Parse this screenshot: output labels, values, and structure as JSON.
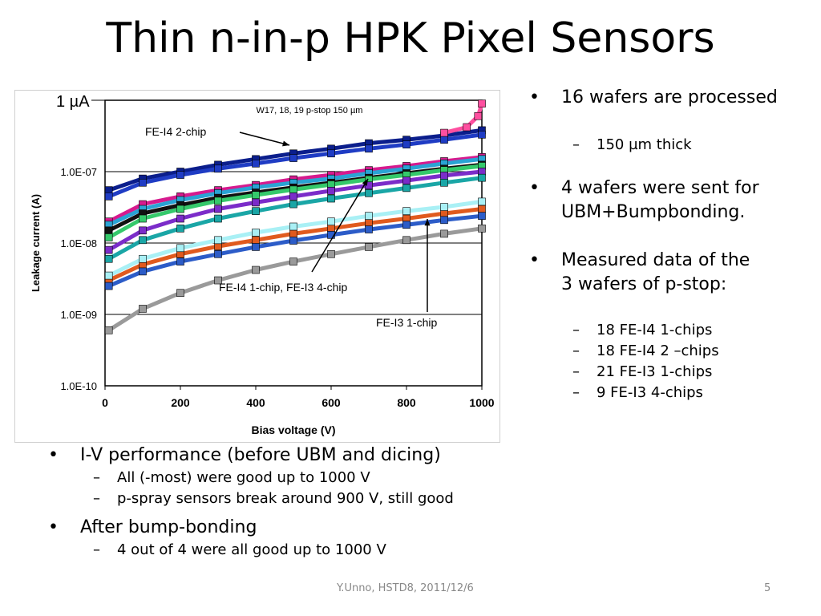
{
  "slide": {
    "title": "Thin n-in-p HPK Pixel Sensors",
    "footer_center": "Y.Unno, HSTD8, 2011/12/6",
    "page_number": "5"
  },
  "right_bullets": [
    {
      "text": "16 wafers are processed",
      "subs": [
        "150 µm thick"
      ]
    },
    {
      "text": "4 wafers were sent for UBM+Bumpbonding.",
      "subs": []
    },
    {
      "text": "Measured data of the 3 wafers of p-stop:",
      "subs": [
        "18 FE-I4 1-chips",
        "18 FE-I4 2 –chips",
        "21 FE-I3 1-chips",
        "9 FE-I3 4-chips"
      ]
    }
  ],
  "bottom_bullets": [
    {
      "text": "I-V performance (before UBM and dicing)",
      "subs": [
        "All (-most) were good up to 1000 V",
        "p-spray sensors break around 900 V, still good"
      ]
    },
    {
      "text": "After bump-bonding",
      "subs": [
        "4 out of 4 were all good up to 1000 V"
      ]
    }
  ],
  "chart_data": {
    "type": "scatter",
    "title": "W17, 18, 19 p-stop 150 µm",
    "xlabel": "Bias voltage (V)",
    "ylabel": "Leakage current (A)",
    "xlim": [
      0,
      1000
    ],
    "ylim": [
      1e-10,
      1e-06
    ],
    "yscale": "log",
    "x_ticks": [
      "0",
      "200",
      "400",
      "600",
      "800",
      "1000"
    ],
    "y_ticks": [
      "1.0E-10",
      "1.0E-09",
      "1.0E-08",
      "1.0E-07"
    ],
    "ref_line_label": "1 µA",
    "grid": true,
    "annotations": [
      "FE-I4 2-chip",
      "FE-I4 1-chip, FE-I3 4-chip",
      "FE-I3 1-chip"
    ],
    "series": [
      {
        "color": "#0b1e8c",
        "x": [
          10,
          100,
          200,
          300,
          400,
          500,
          600,
          700,
          800,
          900,
          1000
        ],
        "y": [
          5.5e-08,
          8e-08,
          1e-07,
          1.25e-07,
          1.5e-07,
          1.8e-07,
          2.1e-07,
          2.5e-07,
          2.8e-07,
          3.2e-07,
          3.8e-07
        ]
      },
      {
        "color": "#1f3cc4",
        "x": [
          10,
          100,
          200,
          300,
          400,
          500,
          600,
          700,
          800,
          900,
          1000
        ],
        "y": [
          4.5e-08,
          7e-08,
          9e-08,
          1.1e-07,
          1.3e-07,
          1.55e-07,
          1.8e-07,
          2.1e-07,
          2.4e-07,
          2.8e-07,
          3.3e-07
        ]
      },
      {
        "color": "#d61a8e",
        "x": [
          10,
          100,
          200,
          300,
          400,
          500,
          600,
          700,
          800,
          900,
          1000
        ],
        "y": [
          2e-08,
          3.5e-08,
          4.5e-08,
          5.5e-08,
          6.5e-08,
          7.8e-08,
          9e-08,
          1.05e-07,
          1.2e-07,
          1.4e-07,
          1.6e-07
        ]
      },
      {
        "color": "#2aa3d4",
        "x": [
          10,
          100,
          200,
          300,
          400,
          500,
          600,
          700,
          800,
          900,
          1000
        ],
        "y": [
          1.8e-08,
          3e-08,
          4e-08,
          5e-08,
          6e-08,
          7e-08,
          8e-08,
          9.5e-08,
          1.1e-07,
          1.3e-07,
          1.5e-07
        ]
      },
      {
        "color": "#111111",
        "x": [
          10,
          100,
          200,
          300,
          400,
          500,
          600,
          700,
          800,
          900,
          1000
        ],
        "y": [
          1.5e-08,
          2.6e-08,
          3.4e-08,
          4.3e-08,
          5.1e-08,
          6e-08,
          7e-08,
          8.2e-08,
          9.5e-08,
          1.1e-07,
          1.25e-07
        ]
      },
      {
        "color": "#35c96b",
        "x": [
          10,
          100,
          200,
          300,
          400,
          500,
          600,
          700,
          800,
          900,
          1000
        ],
        "y": [
          1.2e-08,
          2.2e-08,
          3e-08,
          3.9e-08,
          4.7e-08,
          5.6e-08,
          6.6e-08,
          7.8e-08,
          9e-08,
          1.05e-07,
          1.2e-07
        ]
      },
      {
        "color": "#7b2cc9",
        "x": [
          10,
          100,
          200,
          300,
          400,
          500,
          600,
          700,
          800,
          900,
          1000
        ],
        "y": [
          8e-09,
          1.5e-08,
          2.2e-08,
          3e-08,
          3.7e-08,
          4.5e-08,
          5.4e-08,
          6.4e-08,
          7.5e-08,
          8.8e-08,
          1e-07
        ]
      },
      {
        "color": "#1aa6a6",
        "x": [
          10,
          100,
          200,
          300,
          400,
          500,
          600,
          700,
          800,
          900,
          1000
        ],
        "y": [
          6e-09,
          1.1e-08,
          1.6e-08,
          2.2e-08,
          2.8e-08,
          3.5e-08,
          4.2e-08,
          5e-08,
          5.9e-08,
          7e-08,
          8.2e-08
        ]
      },
      {
        "color": "#e05a1e",
        "x": [
          10,
          100,
          200,
          300,
          400,
          500,
          600,
          700,
          800,
          900,
          1000
        ],
        "y": [
          3e-09,
          5e-09,
          7e-09,
          9e-09,
          1.1e-08,
          1.35e-08,
          1.6e-08,
          1.9e-08,
          2.2e-08,
          2.6e-08,
          3e-08
        ]
      },
      {
        "color": "#a9f0f5",
        "x": [
          10,
          100,
          200,
          300,
          400,
          500,
          600,
          700,
          800,
          900,
          1000
        ],
        "y": [
          3.5e-09,
          6e-09,
          8.5e-09,
          1.1e-08,
          1.4e-08,
          1.7e-08,
          2e-08,
          2.4e-08,
          2.8e-08,
          3.2e-08,
          3.8e-08
        ]
      },
      {
        "color": "#2c5cc8",
        "x": [
          10,
          100,
          200,
          300,
          400,
          500,
          600,
          700,
          800,
          900,
          1000
        ],
        "y": [
          2.5e-09,
          4e-09,
          5.5e-09,
          7e-09,
          8.8e-09,
          1.08e-08,
          1.3e-08,
          1.55e-08,
          1.8e-08,
          2.1e-08,
          2.4e-08
        ]
      },
      {
        "color": "#9a9a9a",
        "x": [
          10,
          100,
          200,
          300,
          400,
          500,
          600,
          700,
          800,
          900,
          1000
        ],
        "y": [
          6e-10,
          1.2e-09,
          2e-09,
          3e-09,
          4.2e-09,
          5.5e-09,
          7e-09,
          8.8e-09,
          1.1e-08,
          1.35e-08,
          1.6e-08
        ]
      },
      {
        "color": "#ff4fa0",
        "x": [
          900,
          960,
          990,
          1000
        ],
        "y": [
          3.5e-07,
          4.2e-07,
          6e-07,
          9e-07
        ]
      }
    ]
  }
}
